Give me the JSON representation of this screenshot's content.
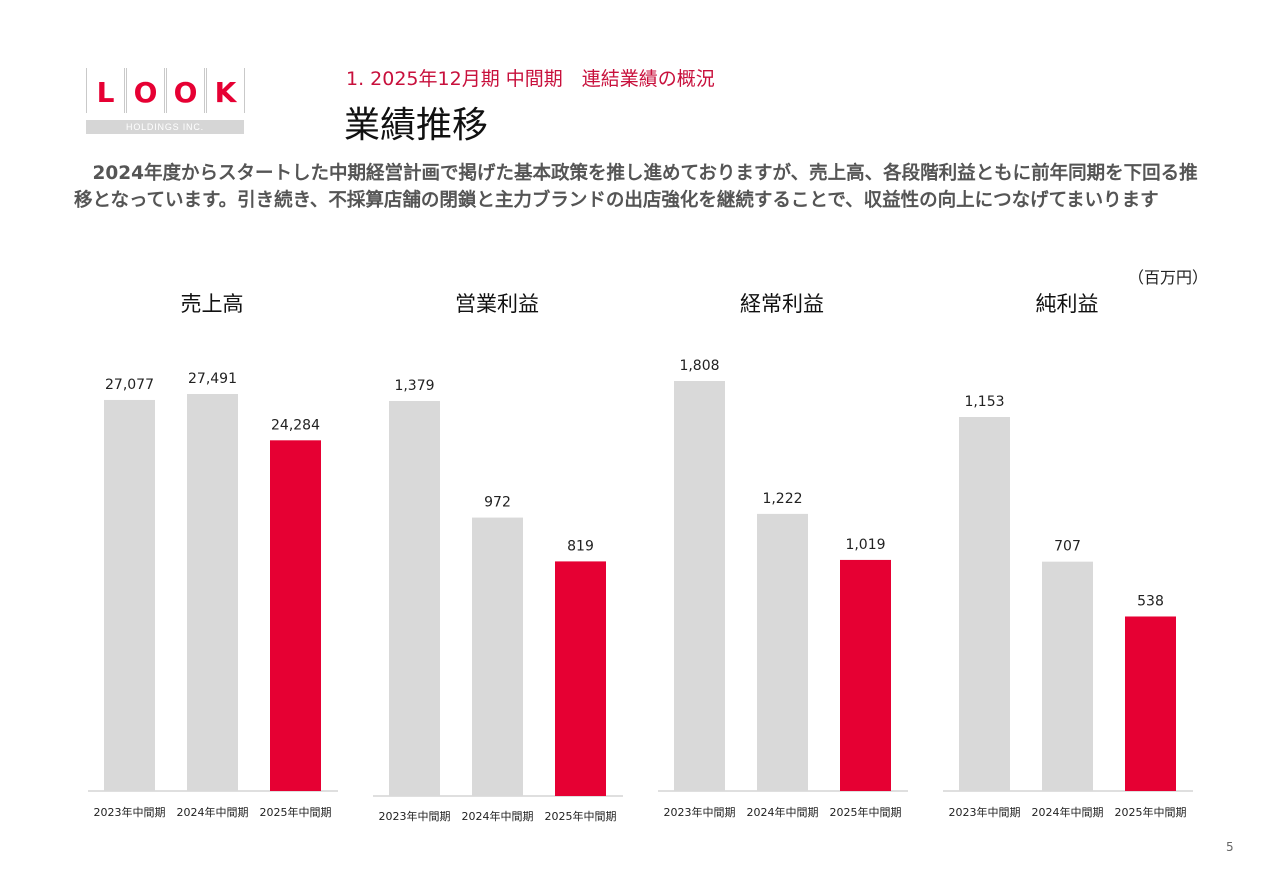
{
  "logo": {
    "letters": [
      "L",
      "O",
      "O",
      "K"
    ],
    "tagline": "HOLDINGS INC."
  },
  "header": {
    "section": "1. 2025年12月期 中間期　連結業績の概況",
    "title": "業績推移"
  },
  "summary": "　2024年度からスタートした中期経営計画で掲げた基本政策を推し進めておりますが、売上高、各段階利益ともに前年同期を下回る推移となっています。引き続き、不採算店舗の閉鎖と主力ブランドの出店強化を継続することで、収益性の向上につなげてまいります",
  "unit": "（百万円）",
  "page_number": "5",
  "colors": {
    "accent": "#e60033",
    "bar_prior": "#d9d9d9",
    "axis": "#bfbfbf"
  },
  "chart_data": [
    {
      "type": "bar",
      "title": "売上高",
      "categories": [
        "2023年中間期",
        "2024年中間期",
        "2025年中間期"
      ],
      "values": [
        27077,
        27491,
        24284
      ],
      "labels": [
        "27,077",
        "27,491",
        "24,284"
      ],
      "highlight_index": 2,
      "xlabel": "",
      "ylabel": ""
    },
    {
      "type": "bar",
      "title": "営業利益",
      "categories": [
        "2023年中間期",
        "2024年中間期",
        "2025年中間期"
      ],
      "values": [
        1379,
        972,
        819
      ],
      "labels": [
        "1,379",
        "972",
        "819"
      ],
      "highlight_index": 2,
      "xlabel": "",
      "ylabel": ""
    },
    {
      "type": "bar",
      "title": "経常利益",
      "categories": [
        "2023年中間期",
        "2024年中間期",
        "2025年中間期"
      ],
      "values": [
        1808,
        1222,
        1019
      ],
      "labels": [
        "1,808",
        "1,222",
        "1,019"
      ],
      "highlight_index": 2,
      "xlabel": "",
      "ylabel": ""
    },
    {
      "type": "bar",
      "title": "純利益",
      "categories": [
        "2023年中間期",
        "2024年中間期",
        "2025年中間期"
      ],
      "values": [
        1153,
        707,
        538
      ],
      "labels": [
        "1,153",
        "707",
        "538"
      ],
      "highlight_index": 2,
      "xlabel": "",
      "ylabel": ""
    }
  ]
}
